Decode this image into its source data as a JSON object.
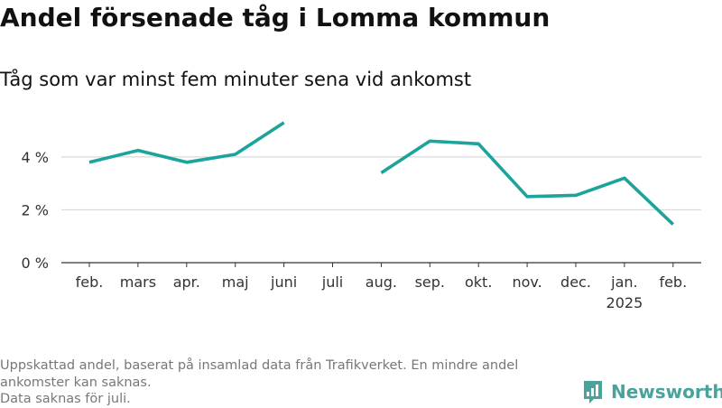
{
  "header": {
    "title": "Andel försenade tåg i Lomma kommun",
    "subtitle": "Tåg som var minst fem minuter sena vid ankomst"
  },
  "footnote": {
    "line1": "Uppskattad andel, baserat på insamlad data från Trafikverket. En mindre andel ankomster kan saknas.",
    "line2": "Data saknas för juli."
  },
  "brand": {
    "name": "Newsworthy",
    "color": "#4aa39a"
  },
  "chart_data": {
    "type": "line",
    "title": "Andel försenade tåg i Lomma kommun",
    "subtitle": "Tåg som var minst fem minuter sena vid ankomst",
    "xlabel": "",
    "ylabel": "",
    "categories": [
      "feb.",
      "mars",
      "apr.",
      "maj",
      "juni",
      "juli",
      "aug.",
      "sep.",
      "okt.",
      "nov.",
      "dec.",
      "jan.",
      "feb."
    ],
    "category_sublabels": [
      "",
      "",
      "",
      "",
      "",
      "",
      "",
      "",
      "",
      "",
      "",
      "2025",
      ""
    ],
    "series": [
      {
        "color": "#1ba39c",
        "values": [
          3.8,
          4.25,
          3.8,
          4.1,
          5.3,
          null,
          3.4,
          4.6,
          4.5,
          2.5,
          2.55,
          3.2,
          1.45
        ]
      }
    ],
    "ylim": [
      0,
      5.5
    ],
    "yticks": [
      0,
      2,
      4
    ],
    "ytick_labels": [
      "0 %",
      "2 %",
      "4 %"
    ],
    "grid": true
  }
}
